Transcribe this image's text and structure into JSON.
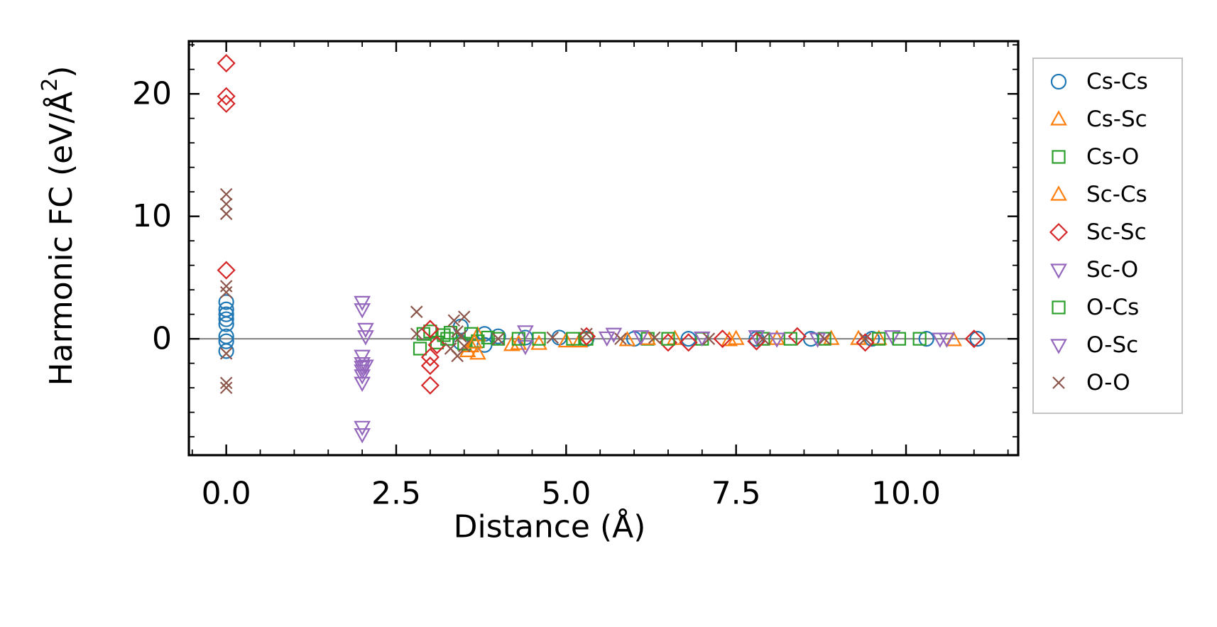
{
  "chart_data": {
    "type": "scatter",
    "xlabel": "Distance (Å)",
    "ylabel": "Harmonic FC (eV/Å",
    "ylabel_sup": "2",
    "ylabel_close": ")",
    "xlim": [
      -0.55,
      11.65
    ],
    "ylim": [
      -9.5,
      24.3
    ],
    "xticks": [
      {
        "value": 0.0,
        "label": "0.0"
      },
      {
        "value": 2.5,
        "label": "2.5"
      },
      {
        "value": 5.0,
        "label": "5.0"
      },
      {
        "value": 7.5,
        "label": "7.5"
      },
      {
        "value": 10.0,
        "label": "10.0"
      }
    ],
    "yticks": [
      {
        "value": 0,
        "label": "0"
      },
      {
        "value": 10,
        "label": "10"
      },
      {
        "value": 20,
        "label": "20"
      }
    ],
    "x_minor_step": 0.5,
    "y_minor_step": 2,
    "zero_line": true,
    "legend_position": "outside-right",
    "series": [
      {
        "name": "Cs-Cs",
        "marker": "circle",
        "color": "#1f77b4",
        "points": [
          [
            0,
            3.0
          ],
          [
            0,
            2.4
          ],
          [
            0,
            2.0
          ],
          [
            0,
            1.6
          ],
          [
            0,
            1.2
          ],
          [
            0,
            0.2
          ],
          [
            0,
            -0.2
          ],
          [
            0,
            -1.0
          ],
          [
            3.45,
            1.0
          ],
          [
            3.45,
            -0.3
          ],
          [
            3.8,
            0.4
          ],
          [
            3.8,
            -0.5
          ],
          [
            4.0,
            0.2
          ],
          [
            4.4,
            0.1
          ],
          [
            4.9,
            0.1
          ],
          [
            5.3,
            0.0
          ],
          [
            6.0,
            0.0
          ],
          [
            6.8,
            0.0
          ],
          [
            7.8,
            0.0
          ],
          [
            8.6,
            0.0
          ],
          [
            9.5,
            0.0
          ],
          [
            10.3,
            0.0
          ],
          [
            11.05,
            0.0
          ]
        ]
      },
      {
        "name": "Cs-Sc",
        "marker": "triangle-up",
        "color": "#ff7f0e",
        "points": [
          [
            3.55,
            -1.0
          ],
          [
            3.6,
            -0.6
          ],
          [
            3.7,
            -1.2
          ],
          [
            3.7,
            0.3
          ],
          [
            4.2,
            -0.5
          ],
          [
            4.6,
            -0.4
          ],
          [
            5.2,
            -0.2
          ],
          [
            5.9,
            -0.1
          ],
          [
            6.6,
            0.0
          ],
          [
            7.4,
            -0.1
          ],
          [
            8.1,
            0.0
          ],
          [
            8.9,
            0.0
          ],
          [
            9.6,
            0.0
          ],
          [
            10.7,
            -0.1
          ]
        ]
      },
      {
        "name": "Cs-O",
        "marker": "square",
        "color": "#2ca02c",
        "points": [
          [
            2.85,
            -0.8
          ],
          [
            2.9,
            0.4
          ],
          [
            3.0,
            0.6
          ],
          [
            3.1,
            -0.3
          ],
          [
            3.2,
            0.3
          ],
          [
            3.3,
            0.5
          ],
          [
            3.5,
            -0.4
          ],
          [
            3.6,
            0.4
          ],
          [
            3.7,
            -0.2
          ],
          [
            4.0,
            0.0
          ],
          [
            4.6,
            0.0
          ],
          [
            5.3,
            0.0
          ],
          [
            6.2,
            0.0
          ],
          [
            7.0,
            0.0
          ],
          [
            7.9,
            0.0
          ],
          [
            8.8,
            0.0
          ],
          [
            9.6,
            0.0
          ],
          [
            10.2,
            0.0
          ]
        ]
      },
      {
        "name": "Sc-Cs",
        "marker": "triangle-up",
        "color": "#ff7f0e",
        "points": [
          [
            3.65,
            -0.3
          ],
          [
            4.3,
            -0.4
          ],
          [
            5.0,
            -0.2
          ],
          [
            6.2,
            0.0
          ],
          [
            7.5,
            0.0
          ],
          [
            9.3,
            0.0
          ]
        ]
      },
      {
        "name": "Sc-Sc",
        "marker": "diamond",
        "color": "#d62728",
        "points": [
          [
            0,
            22.5
          ],
          [
            0,
            19.8
          ],
          [
            0,
            19.2
          ],
          [
            0,
            5.6
          ],
          [
            3.0,
            0.8
          ],
          [
            3.0,
            -1.5
          ],
          [
            3.0,
            -2.2
          ],
          [
            3.0,
            -3.8
          ],
          [
            3.1,
            -0.5
          ],
          [
            5.3,
            0.2
          ],
          [
            6.5,
            -0.3
          ],
          [
            6.8,
            -0.3
          ],
          [
            7.3,
            0.0
          ],
          [
            7.8,
            -0.2
          ],
          [
            8.4,
            0.2
          ],
          [
            9.4,
            -0.3
          ],
          [
            11.0,
            0.0
          ]
        ]
      },
      {
        "name": "Sc-O",
        "marker": "triangle-down",
        "color": "#9467bd",
        "points": [
          [
            2.0,
            3.0
          ],
          [
            2.0,
            2.4
          ],
          [
            2.0,
            -1.4
          ],
          [
            2.0,
            -2.0
          ],
          [
            2.0,
            -2.6
          ],
          [
            2.0,
            -3.0
          ],
          [
            2.0,
            -3.6
          ],
          [
            2.0,
            -7.2
          ],
          [
            2.0,
            -7.8
          ],
          [
            2.05,
            0.8
          ],
          [
            2.05,
            0.2
          ],
          [
            4.4,
            0.6
          ],
          [
            4.4,
            -0.6
          ],
          [
            5.7,
            0.4
          ],
          [
            6.1,
            0.2
          ],
          [
            7.8,
            0.2
          ],
          [
            8.7,
            0.0
          ],
          [
            9.8,
            0.2
          ],
          [
            10.5,
            0.0
          ]
        ]
      },
      {
        "name": "O-Cs",
        "marker": "square",
        "color": "#2ca02c",
        "points": [
          [
            3.25,
            0.0
          ],
          [
            3.85,
            0.1
          ],
          [
            4.3,
            0.0
          ],
          [
            5.1,
            0.0
          ],
          [
            6.5,
            0.0
          ],
          [
            8.3,
            0.0
          ],
          [
            9.9,
            0.0
          ]
        ]
      },
      {
        "name": "O-Sc",
        "marker": "triangle-down",
        "color": "#9467bd",
        "points": [
          [
            2.0,
            -2.3
          ],
          [
            2.05,
            -2.2
          ],
          [
            5.6,
            0.1
          ],
          [
            7.0,
            0.1
          ],
          [
            8.1,
            0.0
          ],
          [
            10.6,
            0.0
          ]
        ]
      },
      {
        "name": "O-O",
        "marker": "x",
        "color": "#8c564b",
        "points": [
          [
            0,
            11.8
          ],
          [
            0,
            11.0
          ],
          [
            0,
            10.2
          ],
          [
            0,
            4.3
          ],
          [
            0,
            3.8
          ],
          [
            0,
            -1.2
          ],
          [
            0,
            -3.6
          ],
          [
            0,
            -4.0
          ],
          [
            2.8,
            2.2
          ],
          [
            2.8,
            0.4
          ],
          [
            3.3,
            -0.8
          ],
          [
            3.35,
            1.5
          ],
          [
            3.4,
            0.6
          ],
          [
            3.4,
            -1.4
          ],
          [
            3.45,
            0.2
          ],
          [
            3.5,
            1.8
          ],
          [
            3.5,
            -0.6
          ],
          [
            4.0,
            0.0
          ],
          [
            4.8,
            0.1
          ],
          [
            5.3,
            0.4
          ],
          [
            5.8,
            0.0
          ],
          [
            6.3,
            0.1
          ],
          [
            7.1,
            0.0
          ],
          [
            7.9,
            0.0
          ],
          [
            8.8,
            0.0
          ],
          [
            9.4,
            0.0
          ]
        ]
      }
    ]
  }
}
